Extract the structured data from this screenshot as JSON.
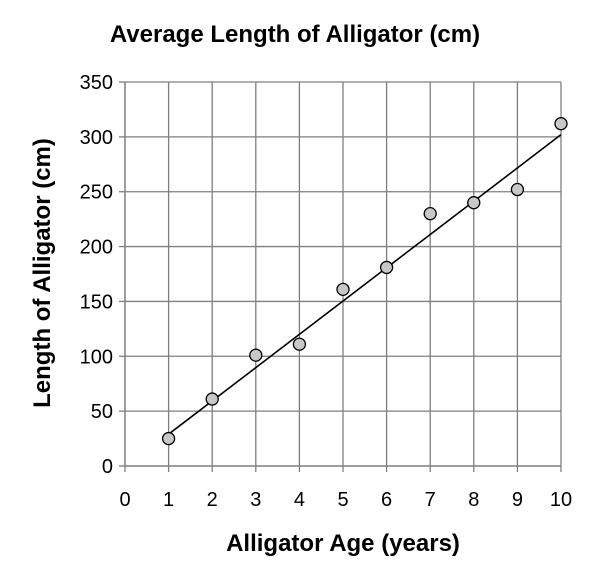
{
  "chart_data": {
    "type": "scatter",
    "title": "Average Length of Alligator (cm)",
    "xlabel": "Alligator Age (years)",
    "ylabel": "Length of Alligator (cm)",
    "xlim": [
      0,
      10
    ],
    "ylim": [
      0,
      350
    ],
    "xticks": [
      0,
      1,
      2,
      3,
      4,
      5,
      6,
      7,
      8,
      9,
      10
    ],
    "yticks": [
      0,
      50,
      100,
      150,
      200,
      250,
      300,
      350
    ],
    "grid": true,
    "legend": "none",
    "points": {
      "x": [
        1,
        2,
        3,
        4,
        5,
        6,
        7,
        8,
        9,
        10
      ],
      "y": [
        25,
        61,
        101,
        111,
        161,
        181,
        230,
        240,
        252,
        312
      ]
    },
    "trendline": {
      "type": "linear",
      "x": [
        1,
        10
      ],
      "y": [
        29,
        302
      ]
    },
    "colors": {
      "marker_fill": "#c8c8c8",
      "marker_stroke": "#000000",
      "line": "#000000",
      "grid": "#7f7f7f"
    }
  }
}
